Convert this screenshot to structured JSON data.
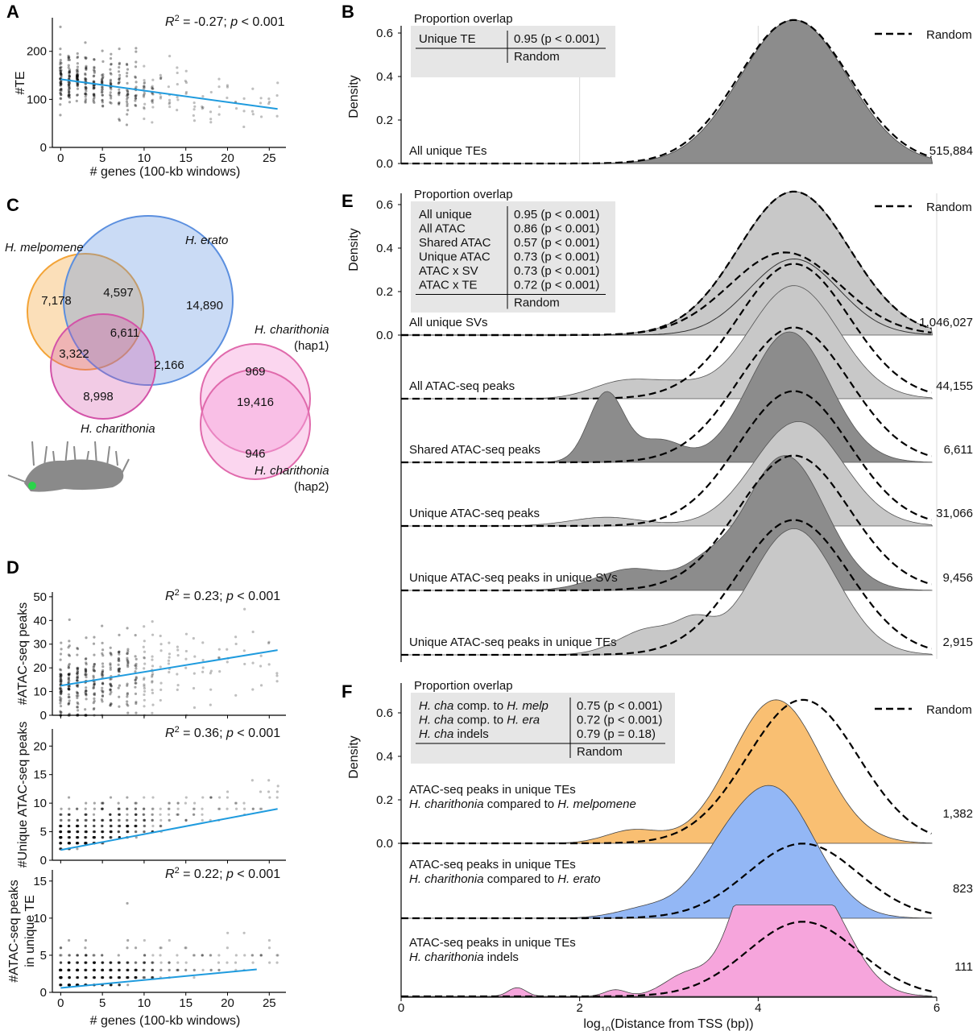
{
  "panels": {
    "A": {
      "label": "A",
      "annotation": "R² = -0.27; p < 0.001",
      "xlabel": "# genes (100-kb windows)",
      "ylabel": "#TE"
    },
    "B": {
      "label": "B",
      "ylabel": "Density",
      "legend": "Random",
      "table_title": "Proportion overlap",
      "table_rows": [
        {
          "name": "Unique TE",
          "value": "0.95 (p < 0.001)"
        }
      ],
      "table_footer": "Random",
      "track_labels": [
        "All unique TEs"
      ],
      "counts": [
        "515,884"
      ]
    },
    "C": {
      "label": "C",
      "sets": [
        "H. melpomene",
        "H. erato",
        "H. charithonia"
      ],
      "hap_sets": [
        "H. charithonia",
        "(hap1)",
        "H. charithonia",
        "(hap2)"
      ],
      "counts": [
        "7,178",
        "4,597",
        "14,890",
        "6,611",
        "3,322",
        "2,166",
        "8,998"
      ],
      "hap_counts": [
        "969",
        "19,416",
        "946"
      ]
    },
    "D": {
      "label": "D",
      "xlabel": "# genes (100-kb windows)",
      "subplots": [
        {
          "ylabel": [
            "#ATAC-seq peaks"
          ],
          "annotation": "R² = 0.23; p < 0.001"
        },
        {
          "ylabel": [
            "#Unique ATAC-seq peaks"
          ],
          "annotation": "R² = 0.36; p < 0.001"
        },
        {
          "ylabel": [
            "#ATAC-seq peaks",
            "in unique TE"
          ],
          "annotation": "R² = 0.22; p < 0.001"
        }
      ]
    },
    "E": {
      "label": "E",
      "ylabel": "Density",
      "legend": "Random",
      "table_title": "Proportion overlap",
      "table_rows": [
        {
          "name": "All unique",
          "value": "0.95 (p < 0.001)"
        },
        {
          "name": "All ATAC",
          "value": "0.86 (p < 0.001)"
        },
        {
          "name": "Shared ATAC",
          "value": "0.57 (p < 0.001)"
        },
        {
          "name": "Unique ATAC",
          "value": "0.73 (p < 0.001)"
        },
        {
          "name": "ATAC x SV",
          "value": "0.73 (p < 0.001)"
        },
        {
          "name": "ATAC x TE",
          "value": "0.72 (p < 0.001)"
        }
      ],
      "table_footer": "Random",
      "track_labels": [
        "All unique SVs",
        "All ATAC-seq peaks",
        "Shared ATAC-seq peaks",
        "Unique ATAC-seq peaks",
        "Unique ATAC-seq peaks in unique SVs",
        "Unique ATAC-seq peaks in unique TEs"
      ],
      "counts": [
        "1,046,027",
        "44,155",
        "6,611",
        "31,066",
        "9,456",
        "2,915"
      ]
    },
    "F": {
      "label": "F",
      "ylabel": "Density",
      "legend": "Random",
      "xlabel": "log₁₀(Distance from TSS (bp))",
      "table_title": "Proportion overlap",
      "table_rows": [
        {
          "name": "H. cha comp. to H. melp",
          "value": "0.75 (p < 0.001)"
        },
        {
          "name": "H. cha comp. to H. era",
          "value": "0.72 (p < 0.001)"
        },
        {
          "name": "H. cha indels",
          "value": "0.79 (p = 0.18)"
        }
      ],
      "table_footer": "Random",
      "track_labels": [
        [
          "ATAC-seq peaks in unique TEs",
          "H. charithonia compared to H. melpomene"
        ],
        [
          "ATAC-seq peaks in unique TEs",
          "H. charithonia compared to H. erato"
        ],
        [
          "ATAC-seq peaks in unique TEs",
          "H. charithonia indels"
        ]
      ],
      "counts": [
        "1,382",
        "823",
        "111"
      ]
    }
  },
  "colors": {
    "regression": "#1f9bde",
    "dark_fill": "#8c8c8c",
    "light_fill": "#c8c8c8",
    "melpomene": "#f9bf72",
    "erato": "#93b7f5",
    "charithonia": "#f6a5dc",
    "venn_mel": "#f3a336",
    "venn_era": "#5b8fdf",
    "venn_cha": "#d353a8"
  },
  "chart_data": [
    {
      "panel": "A",
      "type": "scatter",
      "title": "",
      "xlabel": "# genes (100-kb windows)",
      "ylabel": "#TE",
      "xlim": [
        -1,
        27
      ],
      "ylim": [
        0,
        270
      ],
      "xticks": [
        0,
        5,
        10,
        15,
        20,
        25
      ],
      "yticks": [
        0,
        100,
        200
      ],
      "regression": {
        "x": [
          0,
          26
        ],
        "y": [
          142,
          80
        ]
      },
      "annotation": "R² = -0.27; p < 0.001"
    },
    {
      "panel": "B",
      "type": "area",
      "xlim": [
        0,
        6
      ],
      "ylim": [
        0,
        0.65
      ],
      "yticks": [
        0.0,
        0.2,
        0.4,
        0.6
      ],
      "series": [
        {
          "track": "All unique TEs",
          "count": "515,884",
          "peak_x": 4.4,
          "peak_density": 0.66
        }
      ]
    },
    {
      "panel": "D",
      "type": "scatter",
      "xlabel": "# genes (100-kb windows)",
      "xlim": [
        -1,
        27
      ],
      "xticks": [
        0,
        5,
        10,
        15,
        20,
        25
      ],
      "subplots": [
        {
          "ylim": [
            0,
            52
          ],
          "yticks": [
            0,
            10,
            20,
            30,
            40,
            50
          ],
          "regression": {
            "x": [
              0,
              26
            ],
            "y": [
              12.5,
              27.5
            ]
          },
          "annotation": "R² = 0.23; p < 0.001"
        },
        {
          "ylim": [
            0,
            23
          ],
          "yticks": [
            0,
            5,
            10,
            15,
            20
          ],
          "regression": {
            "x": [
              0,
              26
            ],
            "y": [
              1.8,
              9.0
            ]
          },
          "annotation": "R² = 0.36; p < 0.001"
        },
        {
          "ylim": [
            0,
            16.5
          ],
          "yticks": [
            0,
            5,
            10,
            15
          ],
          "regression": {
            "x": [
              0,
              23.5
            ],
            "y": [
              0.6,
              3.1
            ]
          },
          "annotation": "R² = 0.22; p < 0.001"
        }
      ]
    },
    {
      "panel": "E",
      "type": "area",
      "xlim": [
        0,
        6
      ],
      "yticks": [
        0.0,
        0.2,
        0.4,
        0.6
      ],
      "series": [
        {
          "track": "All unique SVs",
          "count": "1,046,027",
          "peak_x": 4.4,
          "fill": "light"
        },
        {
          "track": "All ATAC-seq peaks",
          "count": "44,155",
          "peak_x": 4.4,
          "fill": "light"
        },
        {
          "track": "Shared ATAC-seq peaks",
          "count": "6,611",
          "peak_x": 4.4,
          "fill": "dark"
        },
        {
          "track": "Unique ATAC-seq peaks",
          "count": "31,066",
          "peak_x": 4.4,
          "fill": "light"
        },
        {
          "track": "Unique ATAC-seq peaks in unique SVs",
          "count": "9,456",
          "peak_x": 4.4,
          "fill": "dark"
        },
        {
          "track": "Unique ATAC-seq peaks in unique TEs",
          "count": "2,915",
          "peak_x": 4.4,
          "fill": "light"
        }
      ]
    },
    {
      "panel": "F",
      "type": "area",
      "xlim": [
        0,
        6
      ],
      "xticks": [
        0,
        2,
        4,
        6
      ],
      "yticks": [
        0.0,
        0.2,
        0.4,
        0.6
      ],
      "xlabel": "log₁₀(Distance from TSS (bp))",
      "series": [
        {
          "track": "H. charithonia compared to H. melpomene",
          "count": "1,382",
          "peak_x": 4.2,
          "color": "#f9bf72"
        },
        {
          "track": "H. charithonia compared to H. erato",
          "count": "823",
          "peak_x": 4.2,
          "color": "#93b7f5"
        },
        {
          "track": "H. charithonia indels",
          "count": "111",
          "peak_x": 4.4,
          "color": "#f6a5dc"
        }
      ]
    }
  ]
}
